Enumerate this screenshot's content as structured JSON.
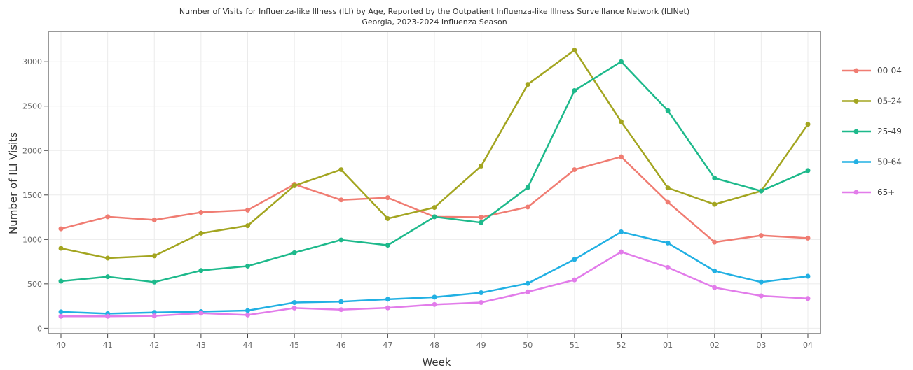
{
  "chart_data": {
    "type": "line",
    "title": "Number of Visits for Influenza-like Illness (ILI) by Age, Reported by the Outpatient Influenza-like Illness Surveillance Network (ILINet)",
    "subtitle": "Georgia, 2023-2024 Influenza Season",
    "xlabel": "Week",
    "ylabel": "Number of ILI Visits",
    "categories": [
      "40",
      "41",
      "42",
      "43",
      "44",
      "45",
      "46",
      "47",
      "48",
      "49",
      "50",
      "51",
      "52",
      "01",
      "02",
      "03",
      "04"
    ],
    "yticks": [
      0,
      500,
      1000,
      1500,
      2000,
      2500,
      3000
    ],
    "ylim": [
      -60,
      3340
    ],
    "grid": true,
    "legend_position": "right",
    "series": [
      {
        "name": "00-04",
        "color": "#f07c72",
        "values": [
          1120,
          1255,
          1220,
          1305,
          1330,
          1620,
          1445,
          1470,
          1255,
          1250,
          1365,
          1785,
          1930,
          1420,
          970,
          1045,
          1015
        ]
      },
      {
        "name": "05-24",
        "color": "#a3a520",
        "values": [
          900,
          790,
          815,
          1070,
          1155,
          1605,
          1785,
          1235,
          1360,
          1825,
          2745,
          3130,
          2325,
          1580,
          1395,
          1545,
          2295
        ]
      },
      {
        "name": "25-49",
        "color": "#1db98b",
        "values": [
          530,
          580,
          520,
          650,
          700,
          850,
          995,
          935,
          1255,
          1190,
          1585,
          2675,
          3000,
          2450,
          1690,
          1545,
          1775
        ]
      },
      {
        "name": "50-64",
        "color": "#21b0e3",
        "values": [
          185,
          165,
          178,
          188,
          200,
          290,
          300,
          327,
          350,
          400,
          505,
          775,
          1085,
          960,
          645,
          520,
          585
        ]
      },
      {
        "name": "65+",
        "color": "#e27cea",
        "values": [
          135,
          135,
          140,
          170,
          150,
          228,
          210,
          230,
          268,
          290,
          410,
          545,
          860,
          685,
          458,
          365,
          335
        ]
      }
    ]
  }
}
